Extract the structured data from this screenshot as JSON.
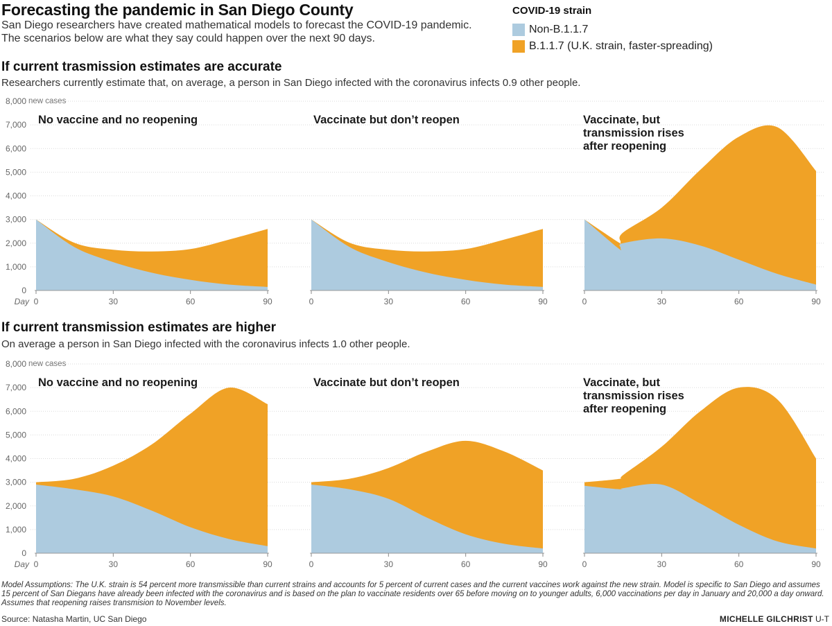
{
  "header": {
    "title": "Forecasting the pandemic in San Diego County",
    "subtitle": "San Diego researchers have created mathematical models to forecast the COVID-19 pandemic. The scenarios below are what they say could happen over the next 90 days."
  },
  "legend": {
    "title": "COVID-19 strain",
    "items": [
      {
        "label": "Non-B.1.1.7",
        "color": "#adcbdf"
      },
      {
        "label": "B.1.1.7 (U.K. strain, faster-spreading)",
        "color": "#f0a226"
      }
    ]
  },
  "sections": [
    {
      "heading": "If current trasmission estimates are accurate",
      "subheading": "Researchers currently estimate that, on average, a person in San Diego infected with the coronavirus infects 0.9 other people."
    },
    {
      "heading": "If current transmission estimates are higher",
      "subheading": "On average a person in San Diego infected with the coronavirus infects 1.0 other people."
    }
  ],
  "chart_data": [
    {
      "type": "area",
      "stacked": true,
      "row": 0,
      "title": "No vaccine and no reopening",
      "x": [
        0,
        15,
        30,
        45,
        60,
        75,
        90
      ],
      "series": [
        {
          "name": "Non-B.1.1.7",
          "values": [
            3000,
            1830,
            1200,
            750,
            450,
            250,
            150
          ]
        },
        {
          "name": "B.1.1.7 (U.K. strain, faster-spreading)",
          "values": [
            0,
            180,
            520,
            900,
            1300,
            1900,
            2450
          ]
        }
      ],
      "xlim": [
        0,
        90
      ],
      "ylim": [
        0,
        8000
      ],
      "xticks": [
        "0",
        "30",
        "60",
        "90"
      ],
      "xlabel": "Day",
      "yticks": [
        "0",
        "1,000",
        "2,000",
        "3,000",
        "4,000",
        "5,000",
        "6,000",
        "7,000",
        "8,000"
      ],
      "ylabel": "new cases"
    },
    {
      "type": "area",
      "stacked": true,
      "row": 0,
      "title": "Vaccinate but don’t reopen",
      "x": [
        0,
        15,
        30,
        45,
        60,
        75,
        90
      ],
      "series": [
        {
          "name": "Non-B.1.1.7",
          "values": [
            3000,
            1830,
            1200,
            750,
            450,
            250,
            150
          ]
        },
        {
          "name": "B.1.1.7 (U.K. strain, faster-spreading)",
          "values": [
            0,
            180,
            520,
            900,
            1300,
            1900,
            2450
          ]
        }
      ],
      "xlim": [
        0,
        90
      ],
      "ylim": [
        0,
        8000
      ],
      "xticks": [
        "0",
        "30",
        "60",
        "90"
      ],
      "xlabel": "",
      "yticks": [],
      "ylabel": ""
    },
    {
      "type": "area",
      "stacked": true,
      "row": 0,
      "title": "Vaccinate, but transmission rises after reopening",
      "x": [
        0,
        13,
        14,
        15,
        30,
        45,
        60,
        75,
        90
      ],
      "series": [
        {
          "name": "Non-B.1.1.7",
          "values": [
            3000,
            1800,
            1800,
            2000,
            2200,
            1900,
            1300,
            700,
            250
          ]
        },
        {
          "name": "B.1.1.7 (U.K. strain, faster-spreading)",
          "values": [
            0,
            250,
            250,
            450,
            1300,
            3200,
            5200,
            6200,
            4800
          ]
        }
      ],
      "xlim": [
        0,
        90
      ],
      "ylim": [
        0,
        8000
      ],
      "xticks": [
        "0",
        "30",
        "60",
        "90"
      ],
      "xlabel": "",
      "yticks": [],
      "ylabel": ""
    },
    {
      "type": "area",
      "stacked": true,
      "row": 1,
      "title": "No vaccine and no reopening",
      "x": [
        0,
        15,
        30,
        45,
        60,
        75,
        90
      ],
      "series": [
        {
          "name": "Non-B.1.1.7",
          "values": [
            2900,
            2700,
            2400,
            1800,
            1100,
            600,
            300
          ]
        },
        {
          "name": "B.1.1.7 (U.K. strain, faster-spreading)",
          "values": [
            100,
            450,
            1300,
            2800,
            4800,
            6400,
            6000
          ]
        }
      ],
      "xlim": [
        0,
        90
      ],
      "ylim": [
        0,
        8000
      ],
      "xticks": [
        "0",
        "30",
        "60",
        "90"
      ],
      "xlabel": "Day",
      "yticks": [
        "0",
        "1,000",
        "2,000",
        "3,000",
        "4,000",
        "5,000",
        "6,000",
        "7,000",
        "8,000"
      ],
      "ylabel": "new cases"
    },
    {
      "type": "area",
      "stacked": true,
      "row": 1,
      "title": "Vaccinate but don’t reopen",
      "x": [
        0,
        15,
        30,
        45,
        60,
        75,
        90
      ],
      "series": [
        {
          "name": "Non-B.1.1.7",
          "values": [
            2900,
            2700,
            2300,
            1500,
            800,
            400,
            200
          ]
        },
        {
          "name": "B.1.1.7 (U.K. strain, faster-spreading)",
          "values": [
            100,
            450,
            1300,
            2800,
            3950,
            3900,
            3300
          ]
        }
      ],
      "xlim": [
        0,
        90
      ],
      "ylim": [
        0,
        8000
      ],
      "xticks": [
        "0",
        "30",
        "60",
        "90"
      ],
      "xlabel": "",
      "yticks": [],
      "ylabel": ""
    },
    {
      "type": "area",
      "stacked": true,
      "row": 1,
      "title": "Vaccinate, but transmission rises after reopening",
      "x": [
        0,
        14,
        15,
        30,
        45,
        60,
        75,
        90
      ],
      "series": [
        {
          "name": "Non-B.1.1.7",
          "values": [
            2850,
            2700,
            2750,
            2900,
            2100,
            1200,
            500,
            200
          ]
        },
        {
          "name": "B.1.1.7 (U.K. strain, faster-spreading)",
          "values": [
            150,
            450,
            550,
            1600,
            3900,
            5800,
            6000,
            3800
          ]
        }
      ],
      "xlim": [
        0,
        90
      ],
      "ylim": [
        0,
        8000
      ],
      "xticks": [
        "0",
        "30",
        "60",
        "90"
      ],
      "xlabel": "",
      "yticks": [],
      "ylabel": ""
    }
  ],
  "footer": {
    "assumptions": "Model Assumptions: The U.K. strain is 54 percent more transmissible than current strains and accounts for 5 percent of current cases and the current vaccines work against the new strain. Model is specific to San Diego and assumes 15 percent of San Diegans have already been infected with the coronavirus and is based on the plan to vaccinate residents over 65 before moving on to younger adults, 6,000 vaccinations per day in January and 20,000 a day onward. Assumes that reopening raises transmision to November levels.",
    "source": "Source: Natasha Martin, UC San Diego",
    "credit_name": "MICHELLE GILCHRIST",
    "credit_org": "U-T"
  }
}
